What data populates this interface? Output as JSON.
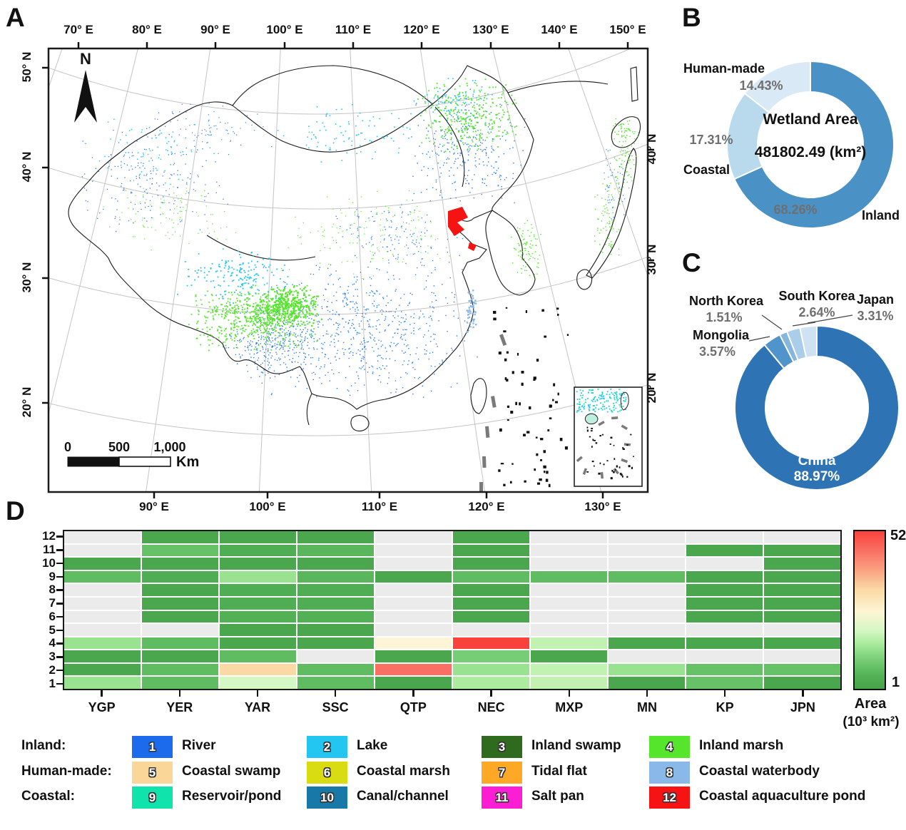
{
  "figure": {
    "panel_a": "A",
    "panel_b": "B",
    "panel_c": "C",
    "panel_d": "D"
  },
  "map": {
    "north_label": "N",
    "top_axis": [
      "70° E",
      "80° E",
      "90° E",
      "100° E",
      "110° E",
      "120° E",
      "130° E",
      "140° E",
      "150° E"
    ],
    "bottom_axis": [
      "90° E",
      "100° E",
      "110° E",
      "120° E",
      "130° E"
    ],
    "left_axis": [
      "50° N",
      "40° N",
      "30° N",
      "20° N"
    ],
    "right_axis": [
      "40° N",
      "30° N",
      "20° N"
    ],
    "scalebar": {
      "tick0": "0",
      "tick500": "500",
      "tick1000": "1,000",
      "unit": "Km"
    }
  },
  "chart_data": [
    {
      "type": "pie",
      "name": "wetland-area-by-category",
      "title": "Wetland Area",
      "center_value": "481802.49 (km²)",
      "labels": [
        "Inland",
        "Coastal",
        "Human-made"
      ],
      "values": [
        68.26,
        17.31,
        14.43
      ],
      "value_labels": [
        "68.26%",
        "17.31%",
        "14.43%"
      ],
      "colors": [
        "#4A91C6",
        "#B9D9EC",
        "#D9E9F6"
      ],
      "unit": "percent",
      "legend_position": "around"
    },
    {
      "type": "pie",
      "name": "wetland-area-by-country",
      "labels": [
        "China",
        "Mongolia",
        "North Korea",
        "South Korea",
        "Japan"
      ],
      "values": [
        88.97,
        3.57,
        1.51,
        2.64,
        3.31
      ],
      "value_labels": [
        "88.97%",
        "3.57%",
        "1.51%",
        "2.64%",
        "3.31%"
      ],
      "colors": [
        "#2E74B5",
        "#4F94CA",
        "#85B6DD",
        "#AACDE9",
        "#CFE2F3"
      ],
      "unit": "percent",
      "legend_position": "around"
    },
    {
      "type": "heatmap",
      "name": "wetland-area-by-class-and-region",
      "columns": [
        "YGP",
        "YER",
        "YAR",
        "SSC",
        "QTP",
        "NEC",
        "MXP",
        "MN",
        "KP",
        "JPN"
      ],
      "rows": [
        "12",
        "11",
        "10",
        "9",
        "8",
        "7",
        "6",
        "5",
        "4",
        "3",
        "2",
        "1"
      ],
      "values": [
        [
          null,
          2,
          2,
          2,
          null,
          2,
          null,
          null,
          null,
          null
        ],
        [
          null,
          8,
          4,
          6,
          null,
          2,
          null,
          null,
          2,
          2
        ],
        [
          2,
          2,
          2,
          2,
          null,
          2,
          null,
          null,
          null,
          2
        ],
        [
          7,
          4,
          14,
          6,
          2,
          7,
          7,
          7,
          2,
          2
        ],
        [
          null,
          2,
          4,
          4,
          null,
          2,
          null,
          null,
          2,
          2
        ],
        [
          null,
          2,
          4,
          4,
          null,
          2,
          null,
          null,
          2,
          2
        ],
        [
          null,
          2,
          5,
          5,
          null,
          2,
          null,
          null,
          2,
          2
        ],
        [
          null,
          null,
          2,
          2,
          null,
          null,
          null,
          null,
          null,
          null
        ],
        [
          14,
          7,
          2,
          2,
          26,
          52,
          18,
          2,
          2,
          2
        ],
        [
          2,
          2,
          7,
          null,
          2,
          10,
          2,
          null,
          null,
          null
        ],
        [
          2,
          7,
          33,
          7,
          46,
          14,
          18,
          14,
          8,
          8
        ],
        [
          14,
          7,
          20,
          7,
          2,
          16,
          18,
          2,
          8,
          2
        ]
      ],
      "na_color": "#EBEBEB",
      "colorbar": {
        "min": 1,
        "max": 52,
        "max_label": "52",
        "min_label": "1",
        "title_line1": "Area",
        "title_line2": "(10³ km²)"
      }
    }
  ],
  "legend": {
    "groups": [
      "Inland:",
      "Human-made:",
      "Coastal:"
    ],
    "items": [
      {
        "num": "1",
        "label": "River",
        "color": "#1B6BEC"
      },
      {
        "num": "2",
        "label": "Lake",
        "color": "#22C6F0"
      },
      {
        "num": "3",
        "label": "Inland swamp",
        "color": "#2F6B1F"
      },
      {
        "num": "4",
        "label": "Inland marsh",
        "color": "#55E62B"
      },
      {
        "num": "5",
        "label": "Coastal swamp",
        "color": "#FBD699"
      },
      {
        "num": "6",
        "label": "Coastal marsh",
        "color": "#D8DC10"
      },
      {
        "num": "7",
        "label": "Tidal flat",
        "color": "#FDA827"
      },
      {
        "num": "8",
        "label": "Coastal waterbody",
        "color": "#8AB8E8"
      },
      {
        "num": "9",
        "label": "Reservoir/pond",
        "color": "#10E3AC"
      },
      {
        "num": "10",
        "label": "Canal/channel",
        "color": "#1879A8"
      },
      {
        "num": "11",
        "label": "Salt pan",
        "color": "#FB1ED2"
      },
      {
        "num": "12",
        "label": "Coastal aquaculture pond",
        "color": "#F51413"
      }
    ]
  }
}
